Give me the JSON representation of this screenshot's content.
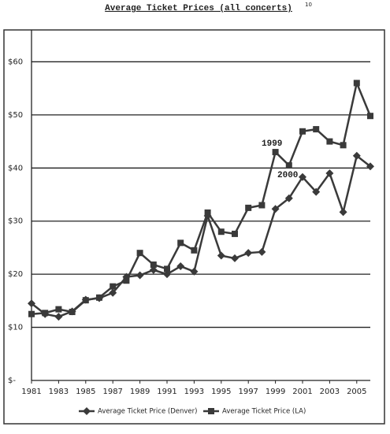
{
  "chart_data": {
    "type": "line",
    "title": "Average Ticket Prices (all concerts)",
    "title_footnote": "10",
    "x": [
      1981,
      1982,
      1983,
      1984,
      1985,
      1986,
      1987,
      1988,
      1989,
      1990,
      1991,
      1992,
      1993,
      1994,
      1995,
      1996,
      1997,
      1998,
      1999,
      2000,
      2001,
      2002,
      2003,
      2004,
      2005,
      2006
    ],
    "xlim": [
      1981,
      2006
    ],
    "xticks": [
      1981,
      1983,
      1985,
      1987,
      1989,
      1991,
      1993,
      1995,
      1997,
      1999,
      2001,
      2003,
      2005
    ],
    "ylim": [
      0,
      66
    ],
    "yticks": [
      {
        "value": 0,
        "label": "$-"
      },
      {
        "value": 10,
        "label": "$10"
      },
      {
        "value": 20,
        "label": "$20"
      },
      {
        "value": 30,
        "label": "$30"
      },
      {
        "value": 40,
        "label": "$40"
      },
      {
        "value": 50,
        "label": "$50"
      },
      {
        "value": 60,
        "label": "$60"
      }
    ],
    "grid": true,
    "legend": "bottom",
    "series": [
      {
        "name": "Average Ticket Price (Denver)",
        "color": "#3a3a3a",
        "marker": "diamond",
        "values": [
          14.5,
          12.5,
          12,
          13,
          15.2,
          15.5,
          16.5,
          19.5,
          19.8,
          20.8,
          20,
          21.5,
          20.5,
          31,
          23.5,
          23,
          24,
          24.2,
          32.3,
          34.3,
          38.3,
          35.5,
          39,
          31.7,
          42.3,
          40.3
        ]
      },
      {
        "name": "Average Ticket Price (LA)",
        "color": "#3a3a3a",
        "marker": "square",
        "values": [
          12.5,
          12.7,
          13.4,
          12.9,
          15.1,
          15.6,
          17.7,
          18.8,
          24,
          21.8,
          21,
          25.9,
          24.5,
          31.6,
          28,
          27.6,
          32.5,
          33,
          43,
          40.5,
          46.9,
          47.3,
          45,
          44.3,
          56,
          49.8
        ]
      }
    ],
    "annotations": [
      "1999",
      "2000"
    ]
  }
}
